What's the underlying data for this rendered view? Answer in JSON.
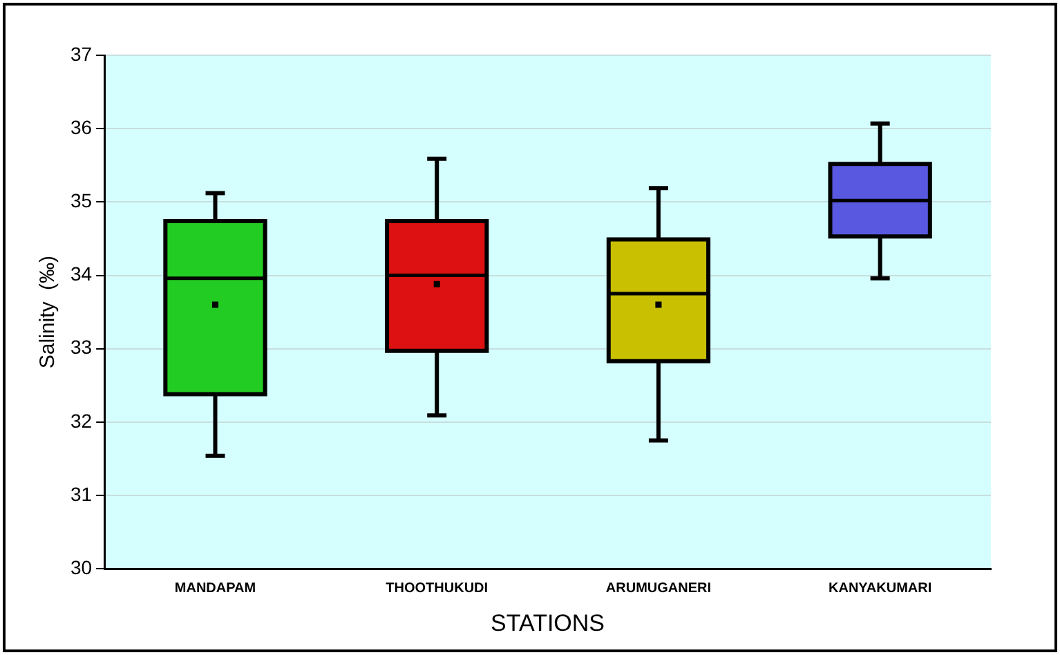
{
  "chart_data": {
    "type": "box",
    "xlabel": "STATIONS",
    "ylabel": "Salinity  (‰)",
    "categories": [
      "MANDAPAM",
      "THOOTHUKUDI",
      "ARUMUGANERI",
      "KANYAKUMARI"
    ],
    "colors": [
      "#22cc22",
      "#dd1111",
      "#c8c000",
      "#5858e0"
    ],
    "boxes": [
      {
        "low": 31.54,
        "q1": 32.38,
        "median": 33.96,
        "q3": 34.74,
        "high": 35.12,
        "mean": 33.6
      },
      {
        "low": 32.09,
        "q1": 32.97,
        "median": 34.0,
        "q3": 34.74,
        "high": 35.59,
        "mean": 33.88
      },
      {
        "low": 31.75,
        "q1": 32.83,
        "median": 33.75,
        "q3": 34.49,
        "high": 35.19,
        "mean": 33.6
      },
      {
        "low": 33.96,
        "q1": 34.53,
        "median": 35.02,
        "q3": 35.52,
        "high": 36.07
      }
    ],
    "ylim": [
      30,
      37
    ],
    "yticks": [
      30,
      31,
      32,
      33,
      34,
      35,
      36,
      37
    ],
    "grid": "y"
  }
}
